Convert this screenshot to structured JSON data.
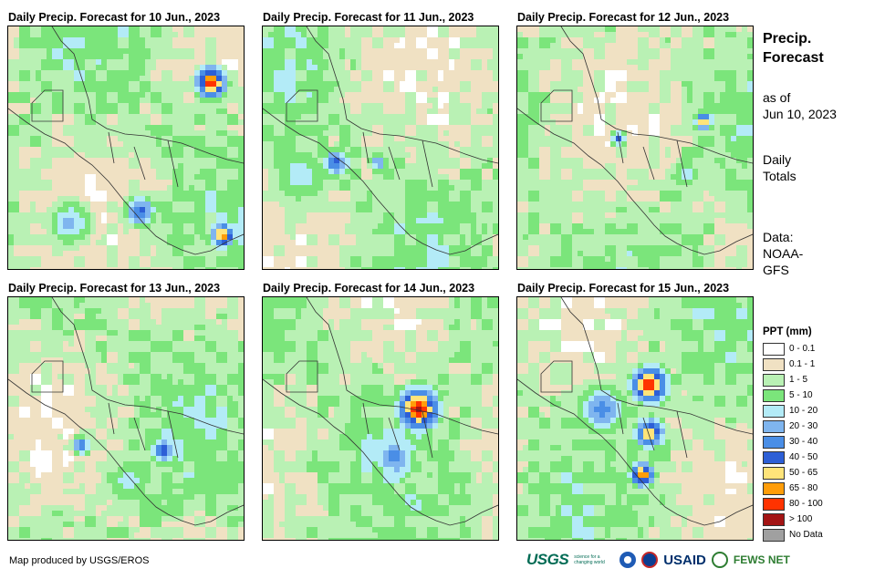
{
  "panels": [
    {
      "title": "Daily Precip. Forecast for 10 Jun., 2023"
    },
    {
      "title": "Daily Precip. Forecast for 11 Jun., 2023"
    },
    {
      "title": "Daily Precip. Forecast for 12 Jun., 2023"
    },
    {
      "title": "Daily Precip. Forecast for 13 Jun., 2023"
    },
    {
      "title": "Daily Precip. Forecast for 14 Jun., 2023"
    },
    {
      "title": "Daily Precip. Forecast for 15 Jun., 2023"
    }
  ],
  "side": {
    "title_line1": "Precip.",
    "title_line2": "Forecast",
    "asof_line1": "as of",
    "asof_line2": "Jun 10, 2023",
    "daily_line1": "Daily",
    "daily_line2": "Totals",
    "data_line1": "Data:",
    "data_line2": "NOAA-",
    "data_line3": "GFS"
  },
  "legend": {
    "title": "PPT (mm)",
    "items": [
      {
        "label": "0 - 0.1",
        "color": "#ffffff"
      },
      {
        "label": "0.1 - 1",
        "color": "#f0e1c3"
      },
      {
        "label": "1 - 5",
        "color": "#b9f1b4"
      },
      {
        "label": "5 - 10",
        "color": "#7be57b"
      },
      {
        "label": "10 - 20",
        "color": "#b3ebf7"
      },
      {
        "label": "20 - 30",
        "color": "#7fb5ef"
      },
      {
        "label": "30 - 40",
        "color": "#4a8ee6"
      },
      {
        "label": "40 - 50",
        "color": "#2d5fd6"
      },
      {
        "label": "50 - 65",
        "color": "#ffe47a"
      },
      {
        "label": "65 - 80",
        "color": "#ff9d0a"
      },
      {
        "label": "80 - 100",
        "color": "#ff3300"
      },
      {
        "label": "> 100",
        "color": "#a31414"
      },
      {
        "label": "No Data",
        "color": "#a0a0a0"
      }
    ]
  },
  "credit": "Map produced by USGS/EROS",
  "logos": {
    "usgs": "USGS",
    "usgs_tagline": "science for a changing world",
    "usaid": "USAID",
    "fews": "FEWS NET"
  }
}
